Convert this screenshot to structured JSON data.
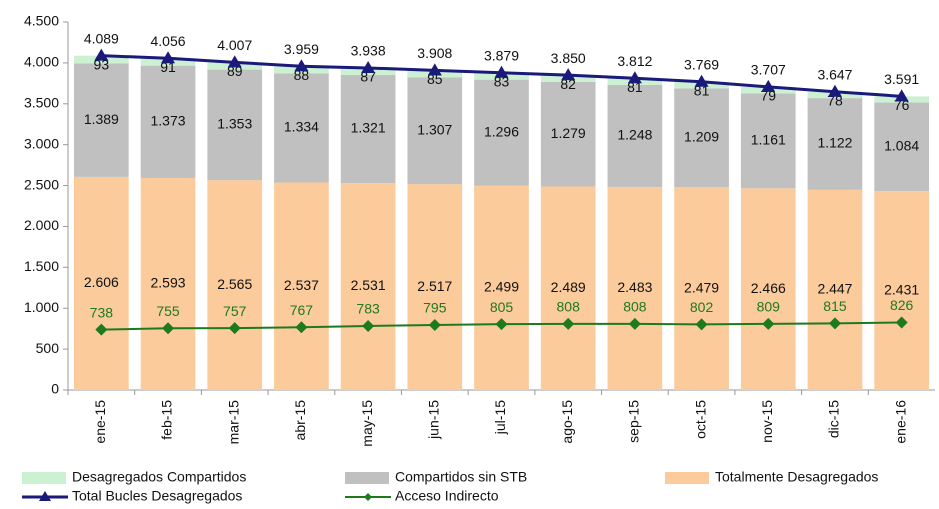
{
  "chart_data": {
    "type": "bar",
    "stacked": true,
    "categories": [
      "ene-15",
      "feb-15",
      "mar-15",
      "abr-15",
      "may-15",
      "jun-15",
      "jul-15",
      "ago-15",
      "sep-15",
      "oct-15",
      "nov-15",
      "dic-15",
      "ene-16"
    ],
    "series": [
      {
        "name": "Totalmente Desagregados",
        "type": "bar",
        "color": "#fbcb9c",
        "values": [
          2606,
          2593,
          2565,
          2537,
          2531,
          2517,
          2499,
          2489,
          2483,
          2479,
          2466,
          2447,
          2431
        ],
        "value_labels": [
          "2.606",
          "2.593",
          "2.565",
          "2.537",
          "2.531",
          "2.517",
          "2.499",
          "2.489",
          "2.483",
          "2.479",
          "2.466",
          "2.447",
          "2.431"
        ]
      },
      {
        "name": "Compartidos sin STB",
        "type": "bar",
        "color": "#c0c0c0",
        "values": [
          1389,
          1373,
          1353,
          1334,
          1321,
          1307,
          1296,
          1279,
          1248,
          1209,
          1161,
          1122,
          1084
        ],
        "value_labels": [
          "1.389",
          "1.373",
          "1.353",
          "1.334",
          "1.321",
          "1.307",
          "1.296",
          "1.279",
          "1.248",
          "1.209",
          "1.161",
          "1.122",
          "1.084"
        ]
      },
      {
        "name": "Desagregados Compartidos",
        "type": "bar",
        "color": "#ccf0d2",
        "values": [
          93,
          91,
          89,
          88,
          87,
          85,
          83,
          82,
          81,
          81,
          79,
          78,
          76
        ]
      },
      {
        "name": "Total Bucles Desagregados",
        "type": "line",
        "color": "#1a1a7a",
        "values": [
          4089,
          4056,
          4007,
          3959,
          3938,
          3908,
          3879,
          3850,
          3812,
          3769,
          3707,
          3647,
          3591
        ],
        "value_labels": [
          "4.089",
          "4.056",
          "4.007",
          "3.959",
          "3.938",
          "3.908",
          "3.879",
          "3.850",
          "3.812",
          "3.769",
          "3.707",
          "3.647",
          "3.591"
        ]
      },
      {
        "name": "Acceso Indirecto",
        "type": "line",
        "color": "#1d7a1d",
        "values": [
          738,
          755,
          757,
          767,
          783,
          795,
          805,
          808,
          808,
          802,
          809,
          815,
          826
        ]
      }
    ],
    "ylim": [
      0,
      4500
    ],
    "yticks": [
      0,
      500,
      {
        "value": 1000,
        "label": "1.000"
      },
      {
        "value": 1500,
        "label": "1.500"
      },
      {
        "value": 2000,
        "label": "2.000"
      },
      {
        "value": 2500,
        "label": "2.500"
      },
      {
        "value": 3000,
        "label": "3.000"
      },
      {
        "value": 3500,
        "label": "3.500"
      },
      {
        "value": 4000,
        "label": "4.000"
      },
      {
        "value": 4500,
        "label": "4.500"
      }
    ],
    "grid": false,
    "legend": "bottom"
  }
}
